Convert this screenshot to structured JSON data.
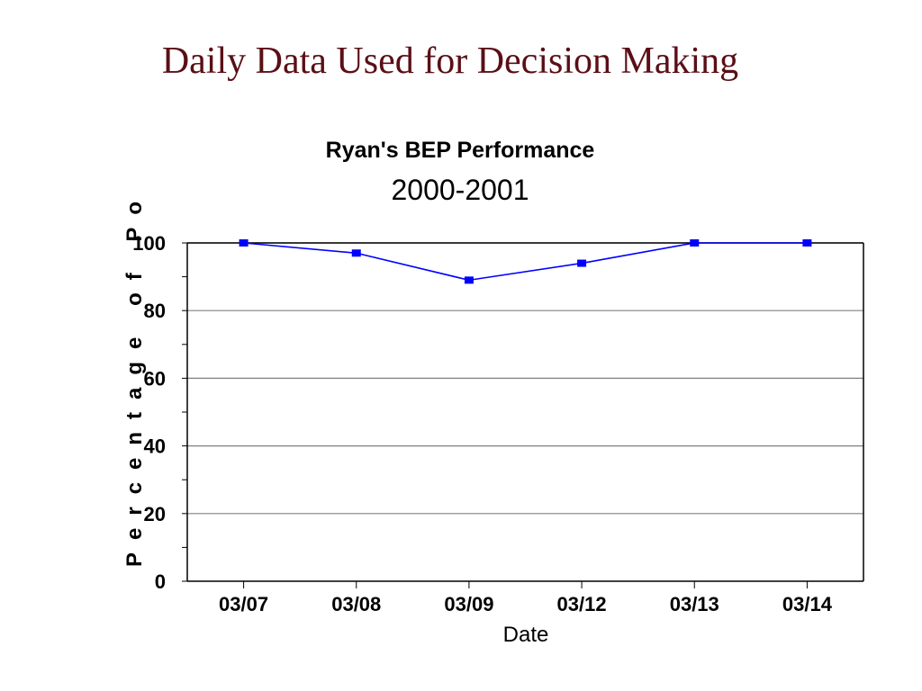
{
  "slide": {
    "title": "Daily Data Used for Decision Making"
  },
  "chart_data": {
    "type": "line",
    "title": "Ryan's BEP Performance",
    "subtitle": "2000-2001",
    "xlabel": "Date",
    "ylabel": "Percentage of Po",
    "categories": [
      "03/07",
      "03/08",
      "03/09",
      "03/12",
      "03/13",
      "03/14"
    ],
    "series": [
      {
        "values": [
          100,
          97,
          89,
          94,
          100,
          100
        ],
        "color": "#0000ff"
      }
    ],
    "ylim": [
      0,
      100
    ],
    "yticks": [
      0,
      20,
      40,
      60,
      80,
      100
    ],
    "grid": true
  }
}
